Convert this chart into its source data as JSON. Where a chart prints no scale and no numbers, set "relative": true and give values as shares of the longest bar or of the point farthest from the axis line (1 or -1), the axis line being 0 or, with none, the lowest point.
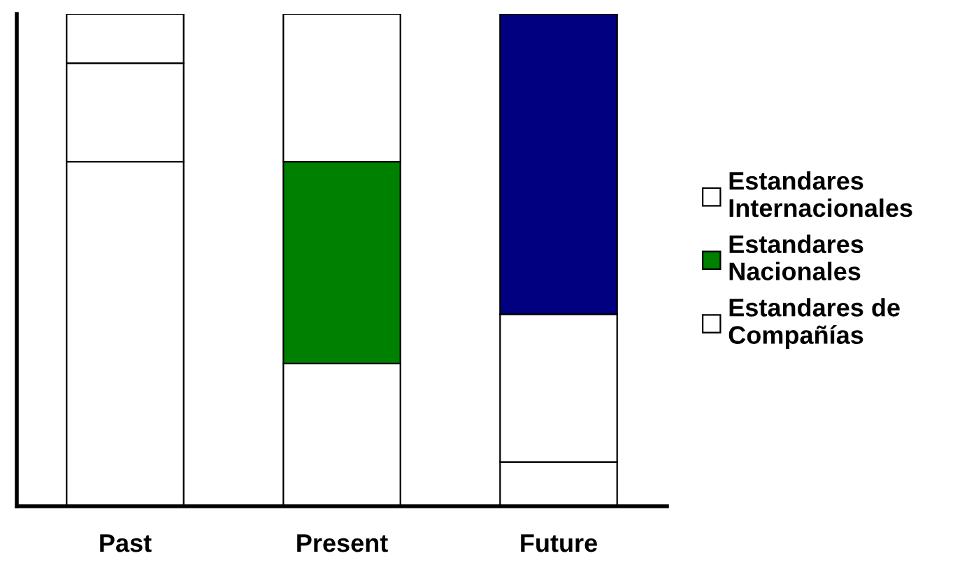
{
  "chart_data": {
    "type": "bar",
    "stacked": true,
    "relative": true,
    "legend": "right",
    "grid": false,
    "categories": [
      "Past",
      "Present",
      "Future"
    ],
    "series": [
      {
        "name": "Estandares de\nCompañías",
        "color": "#ffffff",
        "colors": [
          "#ffffff",
          "#ffffff",
          "#ffffff"
        ],
        "values": [
          0.7,
          0.29,
          0.09
        ]
      },
      {
        "name": "Estandares\nNacionales",
        "color": "#008000",
        "colors": [
          "#ffffff",
          "#008000",
          "#ffffff"
        ],
        "values": [
          0.2,
          0.41,
          0.3
        ]
      },
      {
        "name": "Estandares\nInternacionales",
        "color": "#ffffff",
        "colors": [
          "#ffffff",
          "#ffffff",
          "#000080"
        ],
        "values": [
          0.1,
          0.3,
          0.61
        ]
      }
    ]
  }
}
